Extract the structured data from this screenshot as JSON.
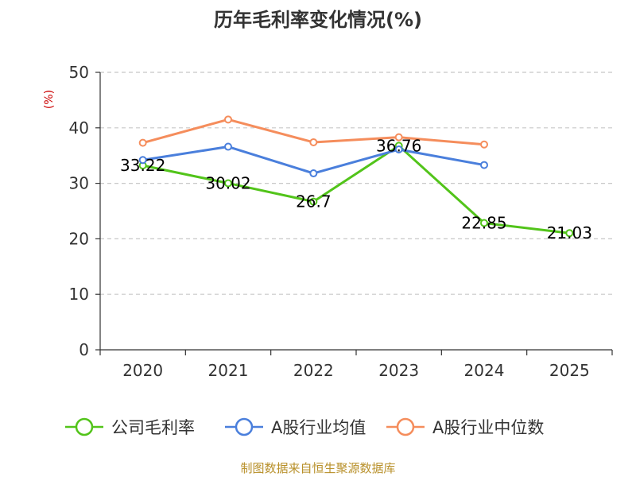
{
  "chart_data": {
    "type": "line",
    "title": "历年毛利率变化情况(%)",
    "y_unit": "(%)",
    "x": [
      "2020",
      "2021",
      "2022",
      "2023",
      "2024",
      "2025"
    ],
    "yticks": [
      0,
      10,
      20,
      30,
      40,
      50
    ],
    "ylim": [
      0,
      50
    ],
    "grid": true,
    "legend_position": "bottom",
    "series": [
      {
        "name": "公司毛利率",
        "color": "#52c41a",
        "values": [
          33.22,
          30.02,
          26.7,
          36.76,
          22.85,
          21.03
        ],
        "labels": [
          "33.22",
          "30.02",
          "26.7",
          "36.76",
          "22.85",
          "21.03"
        ]
      },
      {
        "name": "A股行业均值",
        "color": "#4a7fdc",
        "values": [
          34.2,
          36.6,
          31.8,
          36.1,
          33.3,
          null
        ]
      },
      {
        "name": "A股行业中位数",
        "color": "#f58d5c",
        "values": [
          37.3,
          41.5,
          37.4,
          38.3,
          37.0,
          null
        ]
      }
    ]
  },
  "source_text": "制图数据来自恒生聚源数据库"
}
